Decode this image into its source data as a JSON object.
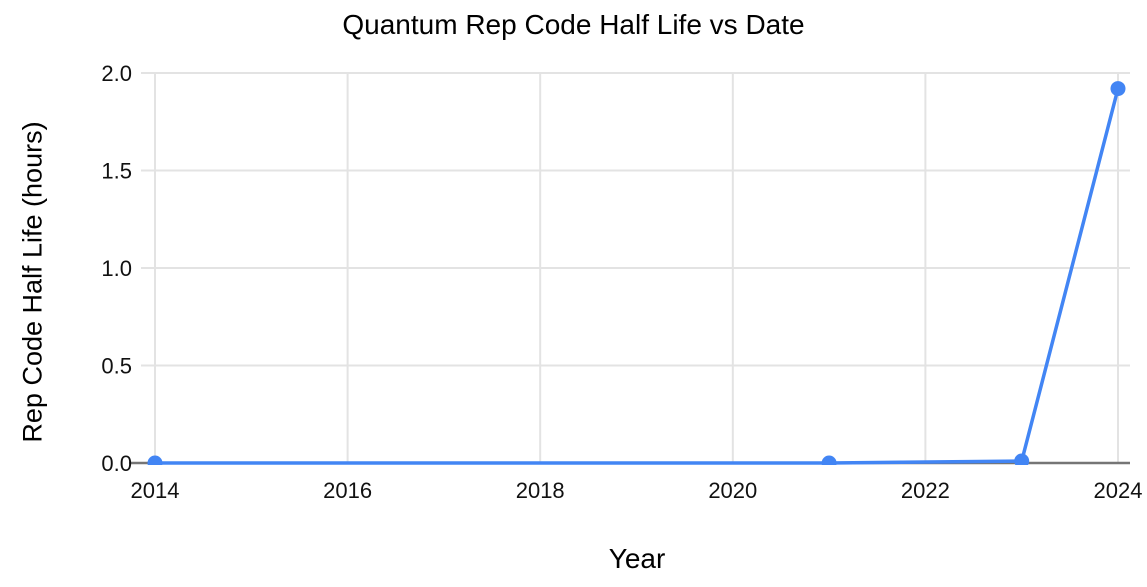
{
  "canvas": {
    "background": "#ffffff"
  },
  "chart_data": {
    "type": "line",
    "title": "Quantum Rep Code Half Life vs Date",
    "xlabel": "Year",
    "ylabel": "Rep Code Half Life (hours)",
    "x": [
      2014,
      2021,
      2023,
      2024
    ],
    "y": [
      0,
      0,
      0.01,
      1.92
    ],
    "xlim": [
      2014,
      2024
    ],
    "ylim": [
      0,
      2
    ],
    "x_ticks": [
      2014,
      2016,
      2018,
      2020,
      2022,
      2024
    ],
    "x_tick_labels": [
      "2014",
      "2016",
      "2018",
      "2020",
      "2022",
      "2024"
    ],
    "y_ticks": [
      0,
      0.5,
      1,
      1.5,
      2
    ],
    "y_tick_labels": [
      "0.0",
      "0.5",
      "1.0",
      "1.5",
      "2.0"
    ],
    "grid": true,
    "legend": "none",
    "colors": {
      "line": "#4285f4",
      "point": "#4285f4",
      "gridline": "#e3e3e3",
      "axis_line": "#757575",
      "text": "#111111",
      "title_text": "#000000"
    }
  }
}
